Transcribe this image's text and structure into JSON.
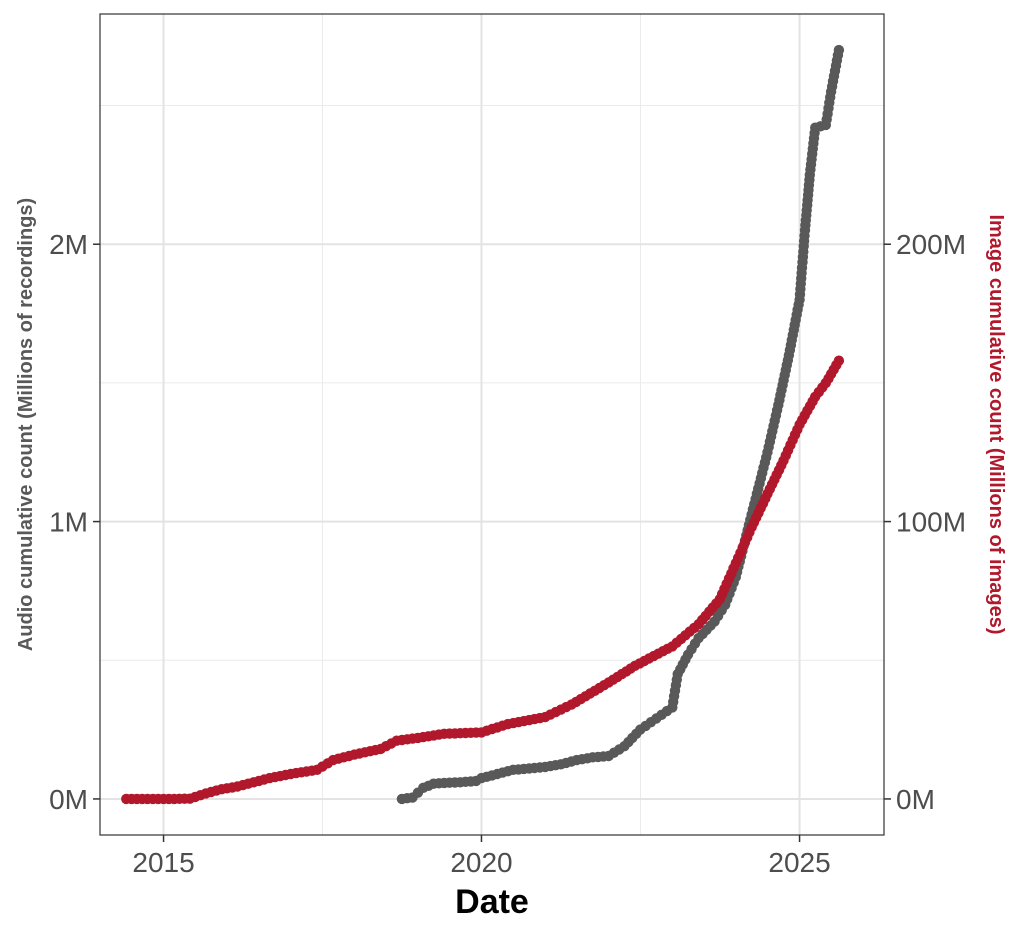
{
  "chart_data": {
    "type": "line",
    "title": "",
    "xlabel": "Date",
    "ylabel_left": "Audio cumulative count (Millions of recordings)",
    "ylabel_right": "Image cumulative count (Millions of images)",
    "xlim": [
      "2014-01-01",
      "2026-05-01"
    ],
    "ylim_left": [
      -130000,
      2830000
    ],
    "ylim_right": [
      -13000000,
      283000000
    ],
    "x_ticks": [
      {
        "date": "2015-01-01",
        "label": "2015"
      },
      {
        "date": "2020-01-01",
        "label": "2020"
      },
      {
        "date": "2025-01-01",
        "label": "2025"
      }
    ],
    "y_left_ticks": [
      {
        "value": 0,
        "label": "0M"
      },
      {
        "value": 1000000,
        "label": "1M"
      },
      {
        "value": 2000000,
        "label": "2M"
      }
    ],
    "y_right_ticks": [
      {
        "value": 0,
        "label": "0M"
      },
      {
        "value": 100000000,
        "label": "100M"
      },
      {
        "value": 200000000,
        "label": "200M"
      }
    ],
    "grid": true,
    "legend": "none",
    "series": [
      {
        "axis": "left",
        "color": "#595959",
        "points": [
          [
            "2018-10-01",
            0
          ],
          [
            "2018-12-01",
            5000
          ],
          [
            "2019-02-01",
            40000
          ],
          [
            "2019-04-01",
            55000
          ],
          [
            "2019-06-01",
            58000
          ],
          [
            "2019-09-01",
            60000
          ],
          [
            "2019-12-01",
            65000
          ],
          [
            "2020-01-01",
            75000
          ],
          [
            "2020-04-01",
            90000
          ],
          [
            "2020-07-01",
            105000
          ],
          [
            "2020-10-01",
            110000
          ],
          [
            "2021-01-01",
            115000
          ],
          [
            "2021-04-01",
            125000
          ],
          [
            "2021-07-01",
            140000
          ],
          [
            "2021-10-01",
            150000
          ],
          [
            "2022-01-01",
            155000
          ],
          [
            "2022-04-01",
            190000
          ],
          [
            "2022-07-01",
            250000
          ],
          [
            "2022-10-01",
            290000
          ],
          [
            "2023-01-01",
            330000
          ],
          [
            "2023-02-01",
            450000
          ],
          [
            "2023-04-01",
            520000
          ],
          [
            "2023-06-01",
            580000
          ],
          [
            "2023-09-01",
            640000
          ],
          [
            "2023-11-01",
            700000
          ],
          [
            "2024-01-01",
            800000
          ],
          [
            "2024-03-01",
            950000
          ],
          [
            "2024-05-01",
            1100000
          ],
          [
            "2024-07-01",
            1250000
          ],
          [
            "2024-09-01",
            1420000
          ],
          [
            "2024-11-01",
            1600000
          ],
          [
            "2025-01-01",
            1800000
          ],
          [
            "2025-02-01",
            2050000
          ],
          [
            "2025-03-01",
            2250000
          ],
          [
            "2025-04-01",
            2420000
          ],
          [
            "2025-06-01",
            2430000
          ],
          [
            "2025-07-01",
            2550000
          ],
          [
            "2025-08-15",
            2700000
          ]
        ]
      },
      {
        "axis": "right",
        "color": "#b2182b",
        "points": [
          [
            "2014-06-01",
            0
          ],
          [
            "2014-08-01",
            0
          ],
          [
            "2014-10-01",
            0
          ],
          [
            "2015-02-01",
            0
          ],
          [
            "2015-06-01",
            100000
          ],
          [
            "2015-09-01",
            2000000
          ],
          [
            "2015-12-01",
            3500000
          ],
          [
            "2016-03-01",
            4500000
          ],
          [
            "2016-06-01",
            6000000
          ],
          [
            "2016-09-01",
            7500000
          ],
          [
            "2017-01-01",
            9000000
          ],
          [
            "2017-06-01",
            10500000
          ],
          [
            "2017-09-01",
            14000000
          ],
          [
            "2018-01-01",
            16000000
          ],
          [
            "2018-06-01",
            18000000
          ],
          [
            "2018-09-01",
            21000000
          ],
          [
            "2019-01-01",
            22000000
          ],
          [
            "2019-06-01",
            23500000
          ],
          [
            "2020-01-01",
            24000000
          ],
          [
            "2020-06-01",
            27000000
          ],
          [
            "2021-01-01",
            29500000
          ],
          [
            "2021-06-01",
            34000000
          ],
          [
            "2022-01-01",
            42000000
          ],
          [
            "2022-06-01",
            48000000
          ],
          [
            "2023-01-01",
            55000000
          ],
          [
            "2023-06-01",
            63000000
          ],
          [
            "2023-10-01",
            72000000
          ],
          [
            "2024-01-01",
            85000000
          ],
          [
            "2024-04-01",
            98000000
          ],
          [
            "2024-07-01",
            110000000
          ],
          [
            "2024-10-01",
            122000000
          ],
          [
            "2025-01-01",
            135000000
          ],
          [
            "2025-04-01",
            145000000
          ],
          [
            "2025-06-01",
            150000000
          ],
          [
            "2025-08-15",
            158000000
          ]
        ]
      }
    ]
  }
}
